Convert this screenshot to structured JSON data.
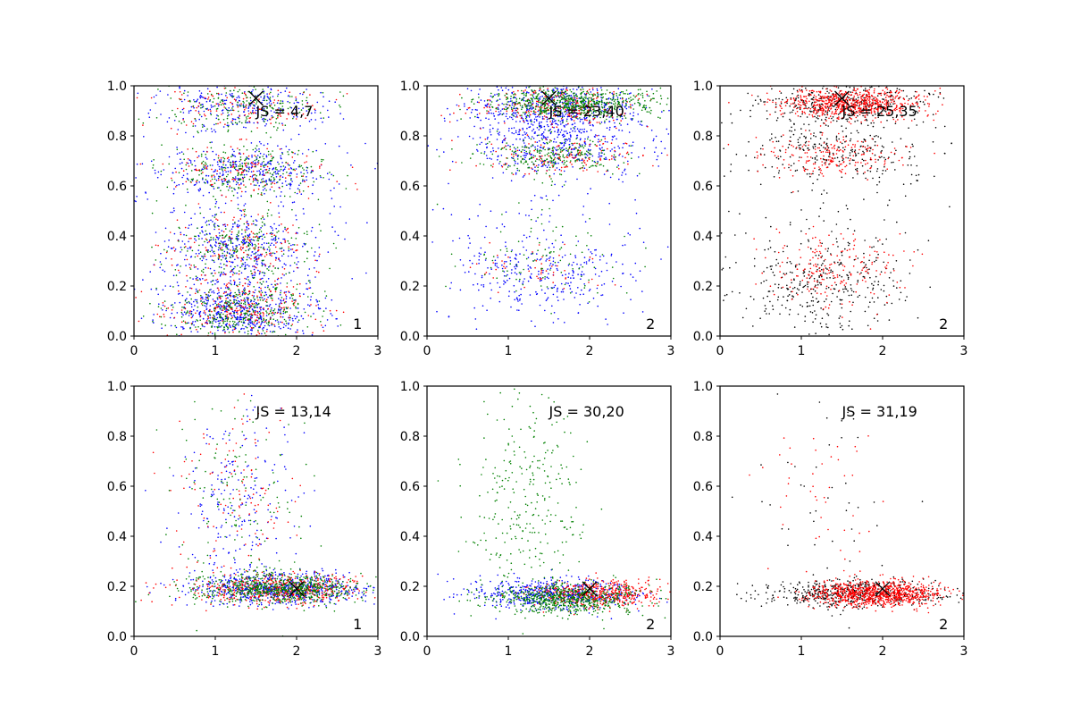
{
  "figure": {
    "layout": "2 rows x 3 columns",
    "background": "#ffffff"
  },
  "chart_data": [
    {
      "type": "scatter",
      "panel": "row1-col1",
      "annotation": "JS = 4,7",
      "corner_label": "1",
      "xlim": [
        0,
        3
      ],
      "ylim": [
        0,
        1.0
      ],
      "xticks": [
        "0",
        "1",
        "2",
        "3"
      ],
      "yticks": [
        "0.0",
        "0.2",
        "0.4",
        "0.6",
        "0.8",
        "1.0"
      ],
      "marker": {
        "x": 1.5,
        "y": 0.95
      },
      "series": [
        {
          "color": "#0000ff",
          "clusters": [
            {
              "cx": 1.3,
              "cy": 0.1,
              "sx": 0.45,
              "sy": 0.06,
              "n": 550
            },
            {
              "cx": 1.3,
              "cy": 0.35,
              "sx": 0.45,
              "sy": 0.08,
              "n": 400
            },
            {
              "cx": 1.4,
              "cy": 0.66,
              "sx": 0.5,
              "sy": 0.05,
              "n": 300
            },
            {
              "cx": 1.3,
              "cy": 0.92,
              "sx": 0.5,
              "sy": 0.05,
              "n": 250
            },
            {
              "cx": 1.4,
              "cy": 0.5,
              "sx": 0.9,
              "sy": 0.3,
              "n": 200
            }
          ]
        },
        {
          "color": "#ff0000",
          "clusters": [
            {
              "cx": 1.3,
              "cy": 0.1,
              "sx": 0.45,
              "sy": 0.06,
              "n": 250
            },
            {
              "cx": 1.3,
              "cy": 0.35,
              "sx": 0.45,
              "sy": 0.08,
              "n": 180
            },
            {
              "cx": 1.4,
              "cy": 0.66,
              "sx": 0.5,
              "sy": 0.05,
              "n": 150
            },
            {
              "cx": 1.3,
              "cy": 0.92,
              "sx": 0.5,
              "sy": 0.05,
              "n": 120
            }
          ]
        },
        {
          "color": "#008000",
          "clusters": [
            {
              "cx": 1.3,
              "cy": 0.1,
              "sx": 0.45,
              "sy": 0.06,
              "n": 350
            },
            {
              "cx": 1.3,
              "cy": 0.35,
              "sx": 0.45,
              "sy": 0.08,
              "n": 250
            },
            {
              "cx": 1.4,
              "cy": 0.66,
              "sx": 0.5,
              "sy": 0.05,
              "n": 250
            },
            {
              "cx": 1.3,
              "cy": 0.92,
              "sx": 0.5,
              "sy": 0.05,
              "n": 200
            }
          ]
        }
      ]
    },
    {
      "type": "scatter",
      "panel": "row1-col2",
      "annotation": "JS = 23,40",
      "corner_label": "2",
      "xlim": [
        0,
        3
      ],
      "ylim": [
        0,
        1.0
      ],
      "xticks": [
        "0",
        "1",
        "2",
        "3"
      ],
      "yticks": [
        "0.0",
        "0.2",
        "0.4",
        "0.6",
        "0.8",
        "1.0"
      ],
      "marker": {
        "x": 1.5,
        "y": 0.95
      },
      "series": [
        {
          "color": "#0000ff",
          "clusters": [
            {
              "cx": 1.6,
              "cy": 0.9,
              "sx": 0.55,
              "sy": 0.06,
              "n": 600
            },
            {
              "cx": 1.6,
              "cy": 0.75,
              "sx": 0.55,
              "sy": 0.05,
              "n": 300
            },
            {
              "cx": 1.4,
              "cy": 0.25,
              "sx": 0.5,
              "sy": 0.07,
              "n": 250
            },
            {
              "cx": 1.4,
              "cy": 0.5,
              "sx": 0.8,
              "sy": 0.3,
              "n": 200
            }
          ]
        },
        {
          "color": "#ff0000",
          "clusters": [
            {
              "cx": 1.6,
              "cy": 0.92,
              "sx": 0.5,
              "sy": 0.04,
              "n": 250
            },
            {
              "cx": 1.6,
              "cy": 0.72,
              "sx": 0.45,
              "sy": 0.04,
              "n": 150
            },
            {
              "cx": 1.4,
              "cy": 0.27,
              "sx": 0.4,
              "sy": 0.06,
              "n": 50
            }
          ]
        },
        {
          "color": "#008000",
          "clusters": [
            {
              "cx": 1.8,
              "cy": 0.93,
              "sx": 0.5,
              "sy": 0.03,
              "n": 650
            },
            {
              "cx": 1.6,
              "cy": 0.72,
              "sx": 0.45,
              "sy": 0.04,
              "n": 250
            },
            {
              "cx": 1.4,
              "cy": 0.3,
              "sx": 0.5,
              "sy": 0.1,
              "n": 100
            }
          ]
        }
      ]
    },
    {
      "type": "scatter",
      "panel": "row1-col3",
      "annotation": "JS = 25,35",
      "corner_label": "2",
      "xlim": [
        0,
        3
      ],
      "ylim": [
        0,
        1.0
      ],
      "xticks": [
        "0",
        "1",
        "2",
        "3"
      ],
      "yticks": [
        "0.0",
        "0.2",
        "0.4",
        "0.6",
        "0.8",
        "1.0"
      ],
      "marker": {
        "x": 1.5,
        "y": 0.95
      },
      "series": [
        {
          "color": "#000000",
          "clusters": [
            {
              "cx": 1.5,
              "cy": 0.93,
              "sx": 0.55,
              "sy": 0.04,
              "n": 350
            },
            {
              "cx": 1.4,
              "cy": 0.75,
              "sx": 0.55,
              "sy": 0.06,
              "n": 250
            },
            {
              "cx": 1.2,
              "cy": 0.2,
              "sx": 0.5,
              "sy": 0.09,
              "n": 300
            },
            {
              "cx": 1.3,
              "cy": 0.5,
              "sx": 0.6,
              "sy": 0.2,
              "n": 120
            }
          ]
        },
        {
          "color": "#ff0000",
          "clusters": [
            {
              "cx": 1.6,
              "cy": 0.93,
              "sx": 0.45,
              "sy": 0.03,
              "n": 700
            },
            {
              "cx": 1.4,
              "cy": 0.72,
              "sx": 0.45,
              "sy": 0.04,
              "n": 200
            },
            {
              "cx": 1.4,
              "cy": 0.28,
              "sx": 0.4,
              "sy": 0.07,
              "n": 200
            }
          ]
        }
      ]
    },
    {
      "type": "scatter",
      "panel": "row2-col1",
      "annotation": "JS = 13,14",
      "corner_label": "1",
      "xlim": [
        0,
        3
      ],
      "ylim": [
        0,
        1.0
      ],
      "xticks": [
        "0",
        "1",
        "2",
        "3"
      ],
      "yticks": [
        "0.0",
        "0.2",
        "0.4",
        "0.6",
        "0.8",
        "1.0"
      ],
      "marker": {
        "x": 2.0,
        "y": 0.19
      },
      "series": [
        {
          "color": "#0000ff",
          "clusters": [
            {
              "cx": 1.8,
              "cy": 0.19,
              "sx": 0.55,
              "sy": 0.03,
              "n": 700
            },
            {
              "cx": 1.3,
              "cy": 0.55,
              "sx": 0.4,
              "sy": 0.2,
              "n": 220
            }
          ]
        },
        {
          "color": "#ff0000",
          "clusters": [
            {
              "cx": 1.8,
              "cy": 0.19,
              "sx": 0.55,
              "sy": 0.03,
              "n": 500
            },
            {
              "cx": 1.3,
              "cy": 0.55,
              "sx": 0.4,
              "sy": 0.2,
              "n": 120
            }
          ]
        },
        {
          "color": "#008000",
          "clusters": [
            {
              "cx": 1.8,
              "cy": 0.19,
              "sx": 0.5,
              "sy": 0.03,
              "n": 700
            },
            {
              "cx": 1.3,
              "cy": 0.55,
              "sx": 0.4,
              "sy": 0.2,
              "n": 140
            }
          ]
        }
      ]
    },
    {
      "type": "scatter",
      "panel": "row2-col2",
      "annotation": "JS = 30,20",
      "corner_label": "2",
      "xlim": [
        0,
        3
      ],
      "ylim": [
        0,
        1.0
      ],
      "xticks": [
        "0",
        "1",
        "2",
        "3"
      ],
      "yticks": [
        "0.0",
        "0.2",
        "0.4",
        "0.6",
        "0.8",
        "1.0"
      ],
      "marker": {
        "x": 2.0,
        "y": 0.19
      },
      "series": [
        {
          "color": "#0000ff",
          "clusters": [
            {
              "cx": 1.6,
              "cy": 0.17,
              "sx": 0.5,
              "sy": 0.03,
              "n": 600
            }
          ]
        },
        {
          "color": "#ff0000",
          "clusters": [
            {
              "cx": 2.1,
              "cy": 0.17,
              "sx": 0.35,
              "sy": 0.025,
              "n": 500
            }
          ]
        },
        {
          "color": "#008000",
          "clusters": [
            {
              "cx": 1.7,
              "cy": 0.15,
              "sx": 0.45,
              "sy": 0.03,
              "n": 650
            },
            {
              "cx": 1.2,
              "cy": 0.5,
              "sx": 0.4,
              "sy": 0.25,
              "n": 300
            }
          ]
        }
      ]
    },
    {
      "type": "scatter",
      "panel": "row2-col3",
      "annotation": "JS = 31,19",
      "corner_label": "2",
      "xlim": [
        0,
        3
      ],
      "ylim": [
        0,
        1.0
      ],
      "xticks": [
        "0",
        "1",
        "2",
        "3"
      ],
      "yticks": [
        "0.0",
        "0.2",
        "0.4",
        "0.6",
        "0.8",
        "1.0"
      ],
      "marker": {
        "x": 2.0,
        "y": 0.19
      },
      "series": [
        {
          "color": "#000000",
          "clusters": [
            {
              "cx": 1.6,
              "cy": 0.17,
              "sx": 0.55,
              "sy": 0.03,
              "n": 500
            },
            {
              "cx": 1.2,
              "cy": 0.55,
              "sx": 0.4,
              "sy": 0.2,
              "n": 40
            }
          ]
        },
        {
          "color": "#ff0000",
          "clusters": [
            {
              "cx": 1.9,
              "cy": 0.17,
              "sx": 0.4,
              "sy": 0.025,
              "n": 900
            },
            {
              "cx": 1.2,
              "cy": 0.55,
              "sx": 0.4,
              "sy": 0.2,
              "n": 50
            }
          ]
        }
      ]
    }
  ]
}
